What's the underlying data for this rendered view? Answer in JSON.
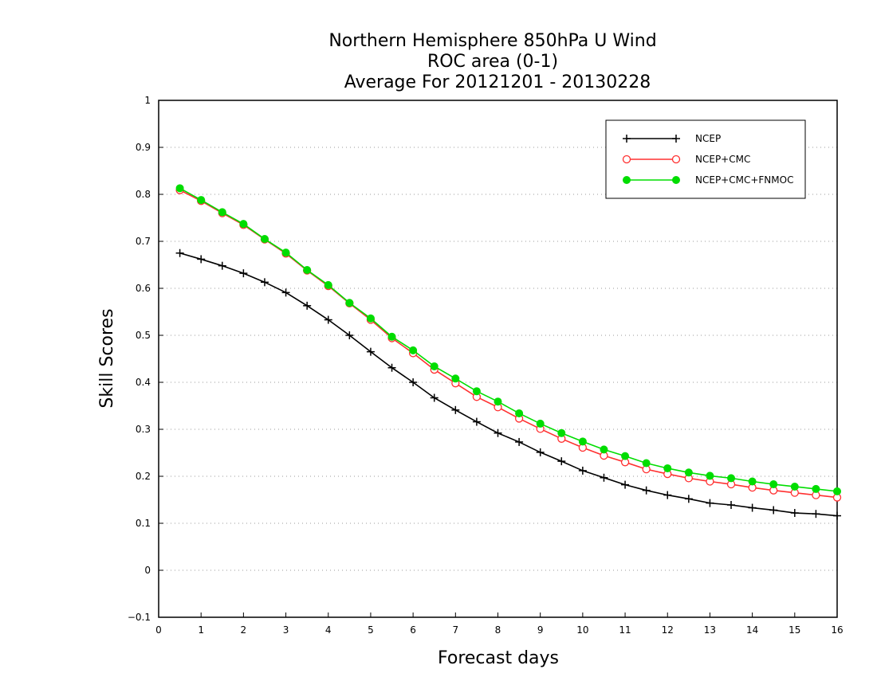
{
  "chart_data": {
    "type": "line",
    "title_lines": [
      "Northern Hemisphere 850hPa U Wind",
      "ROC area (0-1)",
      "Average For 20121201 - 20130228"
    ],
    "xlabel": "Forecast days",
    "ylabel": "Skill Scores",
    "xlim": [
      0,
      16
    ],
    "ylim": [
      -0.1,
      1
    ],
    "x_ticks": [
      "0",
      "1",
      "2",
      "3",
      "4",
      "5",
      "6",
      "7",
      "8",
      "9",
      "10",
      "11",
      "12",
      "13",
      "14",
      "15",
      "16"
    ],
    "y_ticks": [
      "−0.1",
      "0",
      "0.1",
      "0.2",
      "0.3",
      "0.4",
      "0.5",
      "0.6",
      "0.7",
      "0.8",
      "0.9",
      "1"
    ],
    "grid": "dotted-horizontal",
    "legend_position": "top-right",
    "x": [
      0.5,
      1,
      1.5,
      2,
      2.5,
      3,
      3.5,
      4,
      4.5,
      5,
      5.5,
      6,
      6.5,
      7,
      7.5,
      8,
      8.5,
      9,
      9.5,
      10,
      10.5,
      11,
      11.5,
      12,
      12.5,
      13,
      13.5,
      14,
      14.5,
      15,
      15.5,
      16
    ],
    "series": [
      {
        "name": "NCEP",
        "color": "#000000",
        "marker": "plus",
        "values": [
          0.675,
          0.662,
          0.648,
          0.632,
          0.613,
          0.591,
          0.563,
          0.533,
          0.5,
          0.465,
          0.431,
          0.4,
          0.367,
          0.341,
          0.316,
          0.292,
          0.273,
          0.251,
          0.232,
          0.212,
          0.197,
          0.182,
          0.17,
          0.16,
          0.152,
          0.143,
          0.139,
          0.133,
          0.128,
          0.122,
          0.12,
          0.116
        ]
      },
      {
        "name": "NCEP+CMC",
        "color": "#ff3030",
        "marker": "open-circle",
        "values": [
          0.809,
          0.786,
          0.76,
          0.735,
          0.704,
          0.674,
          0.638,
          0.605,
          0.568,
          0.533,
          0.494,
          0.462,
          0.427,
          0.398,
          0.369,
          0.347,
          0.323,
          0.301,
          0.28,
          0.261,
          0.244,
          0.23,
          0.215,
          0.205,
          0.196,
          0.189,
          0.183,
          0.176,
          0.17,
          0.165,
          0.16,
          0.155
        ]
      },
      {
        "name": "NCEP+CMC+FNMOC",
        "color": "#00dd00",
        "marker": "filled-circle",
        "values": [
          0.813,
          0.788,
          0.762,
          0.737,
          0.705,
          0.676,
          0.639,
          0.607,
          0.569,
          0.536,
          0.497,
          0.468,
          0.434,
          0.408,
          0.381,
          0.359,
          0.334,
          0.312,
          0.292,
          0.274,
          0.257,
          0.243,
          0.228,
          0.217,
          0.208,
          0.201,
          0.196,
          0.189,
          0.183,
          0.178,
          0.173,
          0.168
        ]
      }
    ]
  }
}
